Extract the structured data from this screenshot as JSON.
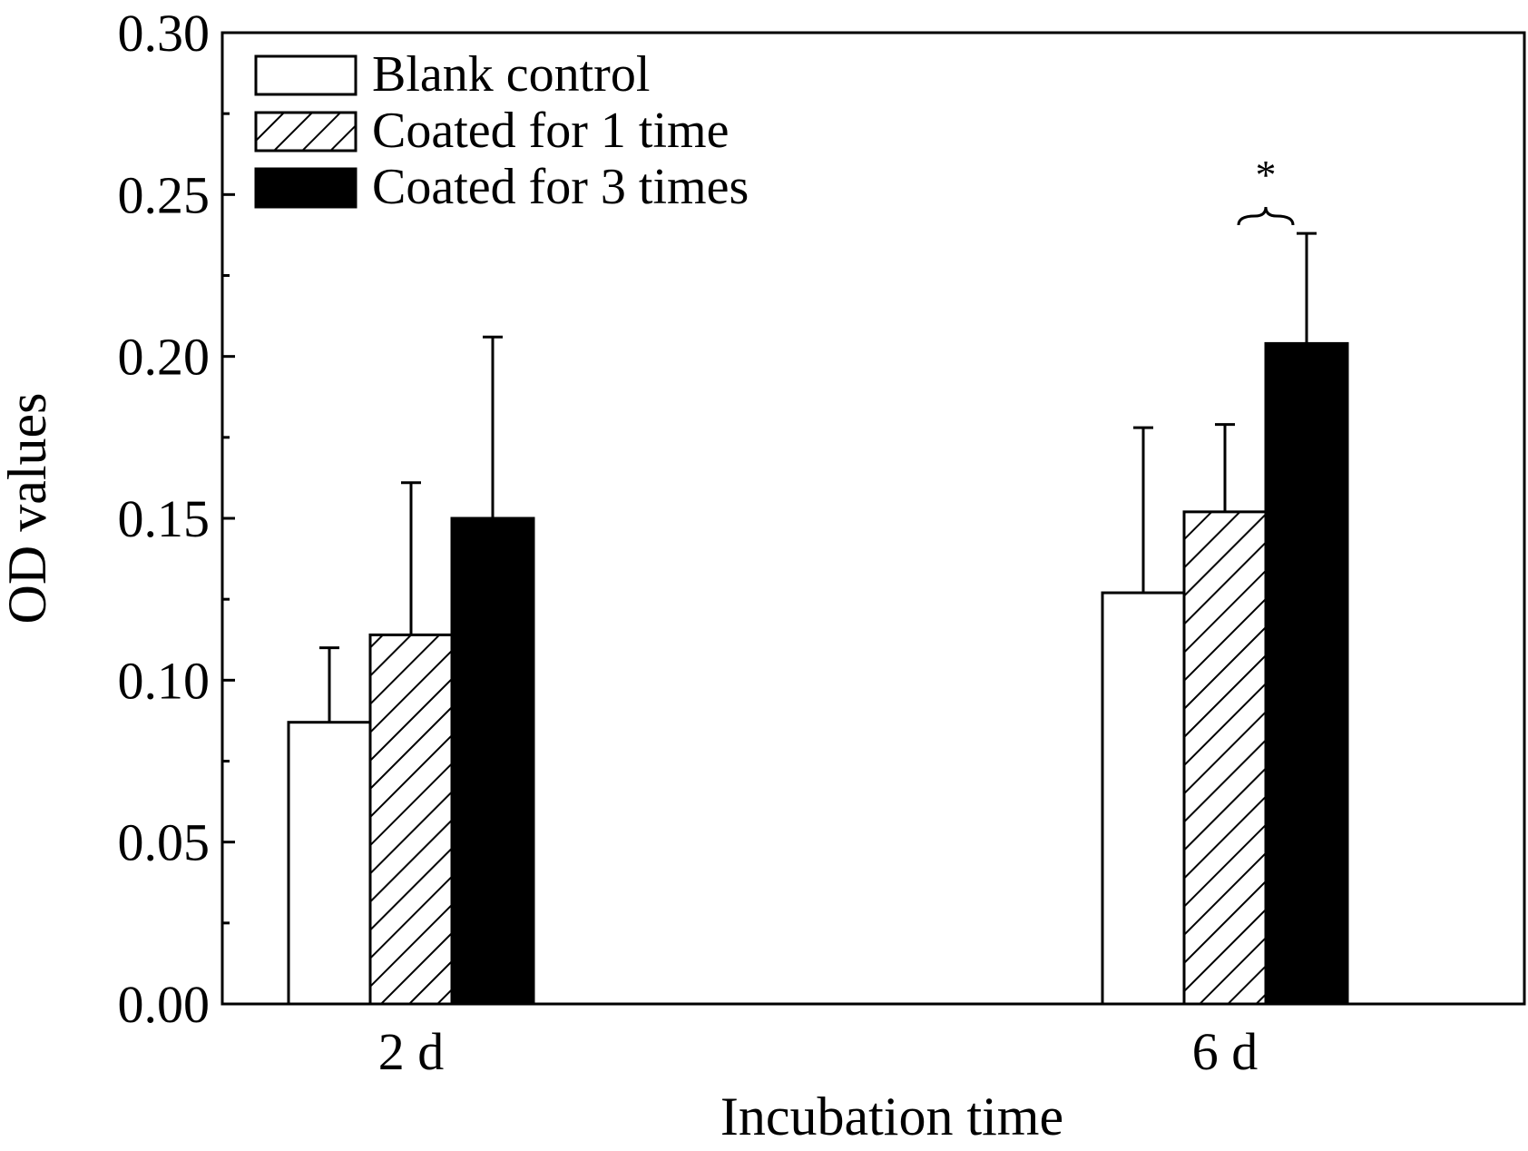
{
  "chart_data": {
    "type": "bar",
    "title": "",
    "xlabel": "Incubation time",
    "ylabel": "OD values",
    "ylim": [
      0,
      0.3
    ],
    "yticks": [
      "0.00",
      "0.05",
      "0.10",
      "0.15",
      "0.20",
      "0.25",
      "0.30"
    ],
    "categories": [
      "2 d",
      "6 d"
    ],
    "series": [
      {
        "name": "Blank control",
        "fill": "white",
        "values": [
          0.087,
          0.127
        ],
        "errors": [
          0.023,
          0.051
        ]
      },
      {
        "name": "Coated for 1 time",
        "fill": "hatch",
        "values": [
          0.114,
          0.152
        ],
        "errors": [
          0.047,
          0.027
        ]
      },
      {
        "name": "Coated for 3 times",
        "fill": "black",
        "values": [
          0.15,
          0.204
        ],
        "errors": [
          0.056,
          0.034
        ]
      }
    ],
    "grid": false,
    "legend_position": "top-left",
    "annotations": [
      {
        "text": "*",
        "category": "6 d",
        "between": [
          "Coated for 1 time",
          "Coated for 3 times"
        ]
      }
    ]
  },
  "colors": {
    "axis": "#000000",
    "bar_edge": "#000000",
    "black_fill": "#000000",
    "white_fill": "#ffffff"
  }
}
